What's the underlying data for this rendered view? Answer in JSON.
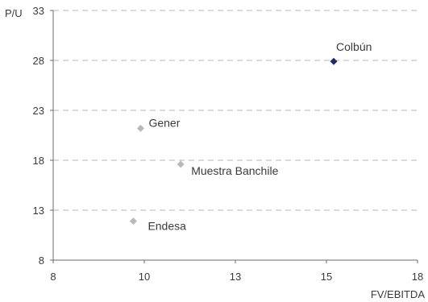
{
  "chart_data": {
    "type": "scatter",
    "title": "",
    "xlabel": "FV/EBITDA",
    "ylabel": "P/U",
    "xlim": [
      8,
      18
    ],
    "ylim": [
      8,
      33
    ],
    "x_ticks": [
      "8",
      "10",
      "13",
      "15",
      "18"
    ],
    "x_tick_values": [
      8,
      10.5,
      13,
      15.5,
      18
    ],
    "y_ticks": [
      "8",
      "13",
      "18",
      "23",
      "28",
      "33"
    ],
    "y_tick_values": [
      8,
      13,
      18,
      23,
      28,
      33
    ],
    "grid": {
      "horizontal": true,
      "style": "dashed"
    },
    "points": [
      {
        "label": "Colbún",
        "x": 15.7,
        "y": 27.9,
        "color": "#1f2a6e"
      },
      {
        "label": "Gener",
        "x": 10.4,
        "y": 21.2,
        "color": "#b9b9b9"
      },
      {
        "label": "Muestra Banchile",
        "x": 11.5,
        "y": 17.6,
        "color": "#b9b9b9"
      },
      {
        "label": "Endesa",
        "x": 10.2,
        "y": 11.9,
        "color": "#b9b9b9"
      }
    ]
  }
}
